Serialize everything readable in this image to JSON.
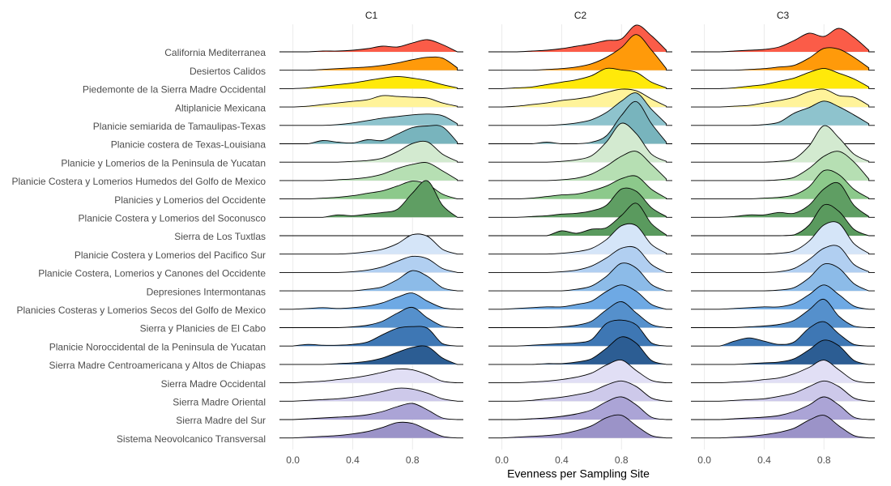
{
  "chart_data": {
    "type": "ridgeline",
    "xlabel": "Evenness per Sampling Site",
    "x": [
      0,
      0.1,
      0.2,
      0.3,
      0.4,
      0.5,
      0.6,
      0.7,
      0.8,
      0.9,
      1.0,
      1.1
    ],
    "xlim": [
      -0.09,
      1.14
    ],
    "xticks": [
      {
        "value": 0,
        "label": "0.0"
      },
      0.4,
      0.8
    ],
    "grid": true,
    "categories": [
      "California Mediterranea",
      "Desiertos Calidos",
      "Piedemonte de la Sierra Madre Occidental",
      "Altiplanicie Mexicana",
      "Planicie semiarida de Tamaulipas-Texas",
      "Planicie costera de Texas-Louisiana",
      "Planicie y Lomerios de la Peninsula de Yucatan",
      "Planicie Costera y Lomerios Humedos del Golfo de Mexico",
      "Planicies y Lomerios del Occidente",
      "Planicie Costera y Lomerios del Soconusco",
      "Sierra de Los Tuxtlas",
      "Planicie Costera y Lomerios del Pacifico Sur",
      "Planicie Costera, Lomerios y Canones del Occidente",
      "Depresiones Intermontanas",
      "Planicies Costeras y Lomerios Secos del Golfo de Mexico",
      "Sierra y Planicies de El Cabo",
      "Planicie Noroccidental de la  Peninsula de Yucatan",
      "Sierra Madre Centroamericana y Altos de Chiapas",
      "Sierra Madre Occidental",
      "Sierra Madre Oriental",
      "Sierra Madre del Sur",
      "Sistema Neovolcanico Transversal"
    ],
    "colors": [
      "#fb5c48",
      "#ff9a0a",
      "#ffe90a",
      "#fff39a",
      "#8ec3cd",
      "#78b4bd",
      "#d3ead0",
      "#b6dfb3",
      "#8cc98b",
      "#5f9e63",
      "#5a9a5e",
      "#d5e5f8",
      "#b1cff1",
      "#8cbbe8",
      "#6ea9e4",
      "#5590cc",
      "#3e77b4",
      "#2c5d93",
      "#e1dff5",
      "#cdc9ea",
      "#aba4d6",
      "#9b93c8"
    ],
    "facets": [
      {
        "title": "C1",
        "values": [
          [
            0,
            0,
            0.1,
            0.1,
            0.2,
            0.4,
            0.7,
            0.6,
            1.1,
            1.5,
            0.9,
            0
          ],
          [
            0,
            0,
            0.1,
            0.2,
            0.3,
            0.4,
            0.6,
            0.9,
            1.3,
            1.6,
            1.5,
            0.3
          ],
          [
            0,
            0.1,
            0.3,
            0.5,
            0.7,
            1.0,
            1.3,
            1.5,
            1.3,
            1.0,
            0.5,
            0.1
          ],
          [
            0,
            0.1,
            0.3,
            0.5,
            0.7,
            0.9,
            1.4,
            1.3,
            1.2,
            1.1,
            0.5,
            0.1
          ],
          [
            0,
            0,
            0,
            0.1,
            0.3,
            0.6,
            0.9,
            1.1,
            1.3,
            1.4,
            1.2,
            0.2
          ],
          [
            0,
            0,
            0.4,
            0.2,
            0.1,
            0.5,
            0.4,
            1.2,
            2.0,
            2.2,
            2.1,
            0.2
          ],
          [
            0,
            0,
            0,
            0,
            0.1,
            0.2,
            0.5,
            1.3,
            2.3,
            2.5,
            1.0,
            0.1
          ],
          [
            0,
            0,
            0,
            0.1,
            0.2,
            0.4,
            0.8,
            1.5,
            2.0,
            2.2,
            1.2,
            0.1
          ],
          [
            0,
            0,
            0.1,
            0.2,
            0.4,
            0.7,
            1.0,
            1.6,
            2.2,
            1.8,
            0.6,
            0
          ],
          [
            0,
            0,
            0,
            0.3,
            0.2,
            0.4,
            0.6,
            1.0,
            3.0,
            4.5,
            1.5,
            0
          ],
          [
            0,
            0,
            0,
            0,
            0,
            0,
            0,
            0,
            0,
            0,
            0,
            0
          ],
          [
            0,
            0,
            0,
            0,
            0.1,
            0.3,
            0.6,
            1.3,
            2.4,
            2.2,
            0.6,
            0
          ],
          [
            0,
            0,
            0,
            0,
            0.1,
            0.3,
            0.7,
            1.4,
            2.0,
            1.7,
            0.5,
            0
          ],
          [
            0,
            0,
            0,
            0,
            0,
            0.2,
            0.5,
            1.4,
            2.5,
            1.8,
            0.4,
            0
          ],
          [
            0,
            0.1,
            0.2,
            0.1,
            0.2,
            0.4,
            0.8,
            1.5,
            2.0,
            1.0,
            0.2,
            0
          ],
          [
            0,
            0,
            0,
            0,
            0.1,
            0.3,
            0.8,
            1.8,
            2.5,
            1.2,
            0.2,
            0
          ],
          [
            0,
            0.2,
            0.1,
            0.1,
            0.2,
            0.5,
            1.4,
            2.2,
            2.4,
            2.2,
            0.3,
            0
          ],
          [
            0,
            0,
            0,
            0.1,
            0.2,
            0.4,
            0.8,
            1.5,
            2.1,
            2.2,
            0.8,
            0
          ],
          [
            0,
            0.1,
            0.2,
            0.4,
            0.6,
            0.9,
            1.3,
            1.7,
            1.6,
            1.0,
            0.2,
            0
          ],
          [
            0,
            0.1,
            0.2,
            0.3,
            0.5,
            0.8,
            1.2,
            1.6,
            1.5,
            1.0,
            0.3,
            0
          ],
          [
            0,
            0.1,
            0.2,
            0.3,
            0.4,
            0.6,
            1.0,
            1.6,
            2.0,
            1.2,
            0.2,
            0
          ],
          [
            0,
            0.1,
            0.2,
            0.3,
            0.5,
            0.8,
            1.3,
            1.9,
            1.8,
            1.0,
            0.2,
            0
          ]
        ]
      },
      {
        "title": "C2",
        "values": [
          [
            0,
            0,
            0.1,
            0.2,
            0.4,
            0.7,
            1.0,
            1.4,
            1.6,
            3.3,
            2.0,
            0.2
          ],
          [
            0,
            0,
            0,
            0.1,
            0.2,
            0.4,
            0.8,
            1.6,
            2.8,
            4.4,
            2.5,
            0.2
          ],
          [
            0,
            0.1,
            0.2,
            0.5,
            0.8,
            1.1,
            1.6,
            2.5,
            2.3,
            2.0,
            0.8,
            0.1
          ],
          [
            0,
            0.1,
            0.3,
            0.5,
            0.8,
            1.0,
            1.3,
            1.8,
            2.2,
            2.0,
            1.0,
            0.1
          ],
          [
            0,
            0,
            0,
            0,
            0.1,
            0.3,
            0.7,
            1.6,
            3.0,
            4.0,
            2.0,
            0.2
          ],
          [
            0,
            0,
            0,
            0.2,
            0,
            0,
            0.2,
            1.0,
            3.5,
            5.2,
            2.5,
            0.2
          ],
          [
            0,
            0,
            0,
            0,
            0.1,
            0.3,
            0.8,
            2.5,
            4.8,
            3.5,
            1.0,
            0.1
          ],
          [
            0,
            0,
            0,
            0,
            0.1,
            0.3,
            0.8,
            1.8,
            3.0,
            3.6,
            2.0,
            0.2
          ],
          [
            0,
            0,
            0.1,
            0.3,
            0.5,
            0.6,
            1.0,
            1.6,
            2.5,
            2.8,
            1.2,
            0.1
          ],
          [
            0,
            0,
            0.1,
            0.2,
            0.4,
            0.5,
            0.8,
            1.5,
            3.5,
            3.2,
            1.2,
            0.1
          ],
          [
            0,
            0,
            0,
            0,
            0.6,
            0.3,
            0.8,
            1.0,
            2.5,
            4.0,
            1.5,
            0.1
          ],
          [
            0,
            0,
            0,
            0,
            0.1,
            0.3,
            0.7,
            1.8,
            3.5,
            3.5,
            1.2,
            0.1
          ],
          [
            0,
            0,
            0,
            0,
            0.1,
            0.3,
            0.8,
            1.8,
            3.0,
            3.0,
            1.0,
            0
          ],
          [
            0,
            0,
            0,
            0,
            0,
            0.2,
            0.6,
            1.8,
            3.4,
            2.8,
            0.8,
            0
          ],
          [
            0,
            0.1,
            0.2,
            0.3,
            0.3,
            0.6,
            1.0,
            2.2,
            3.0,
            2.2,
            0.6,
            0
          ],
          [
            0,
            0,
            0,
            0,
            0.1,
            0.3,
            0.8,
            2.2,
            3.2,
            1.8,
            0.4,
            0
          ],
          [
            0,
            0,
            0.1,
            0.2,
            0.3,
            0.4,
            0.8,
            2.8,
            3.2,
            2.6,
            0.4,
            0
          ],
          [
            0,
            0,
            0,
            0.1,
            0.1,
            0.3,
            0.7,
            2.0,
            3.4,
            2.6,
            0.5,
            0
          ],
          [
            0,
            0,
            0.1,
            0.2,
            0.4,
            0.7,
            1.2,
            2.2,
            2.8,
            1.5,
            0.3,
            0
          ],
          [
            0,
            0,
            0.1,
            0.3,
            0.5,
            0.8,
            1.2,
            2.0,
            2.5,
            1.8,
            0.4,
            0
          ],
          [
            0,
            0,
            0.1,
            0.2,
            0.4,
            0.7,
            1.2,
            2.2,
            2.8,
            1.8,
            0.3,
            0
          ],
          [
            0,
            0.1,
            0.2,
            0.3,
            0.5,
            0.9,
            1.5,
            2.5,
            2.8,
            1.5,
            0.3,
            0
          ]
        ]
      },
      {
        "title": "C3",
        "values": [
          [
            0,
            0,
            0.1,
            0.2,
            0.3,
            0.6,
            1.4,
            2.3,
            1.9,
            2.9,
            1.8,
            0.2
          ],
          [
            0,
            0,
            0,
            0.1,
            0.2,
            0.4,
            0.6,
            1.5,
            2.7,
            2.6,
            1.6,
            0.3
          ],
          [
            0,
            0,
            0.1,
            0.3,
            0.5,
            0.9,
            1.3,
            2.0,
            2.5,
            1.9,
            1.2,
            0.2
          ],
          [
            0,
            0,
            0.1,
            0.2,
            0.5,
            0.8,
            1.2,
            1.9,
            2.2,
            1.4,
            1.2,
            0.2
          ],
          [
            0,
            0,
            0,
            0,
            0.1,
            0.4,
            1.5,
            2.2,
            3.0,
            2.3,
            1.3,
            0.2
          ],
          [
            0,
            0,
            0,
            0,
            0,
            0,
            0,
            0,
            0,
            0,
            0,
            0
          ],
          [
            0,
            0,
            0,
            0,
            0,
            0.1,
            0.4,
            2.0,
            4.5,
            3.0,
            1.0,
            0.1
          ],
          [
            0,
            0,
            0,
            0,
            0,
            0.1,
            0.4,
            1.5,
            3.0,
            3.6,
            2.3,
            0.2
          ],
          [
            0,
            0,
            0,
            0,
            0.1,
            0.2,
            0.5,
            1.5,
            3.5,
            3.0,
            1.2,
            0.1
          ],
          [
            0,
            0,
            0.1,
            0.3,
            0.3,
            0.6,
            0.5,
            1.5,
            3.5,
            4.2,
            1.5,
            0.1
          ],
          [
            0,
            0,
            0,
            0,
            0,
            0,
            0.1,
            1.3,
            3.8,
            3.0,
            0.8,
            0
          ],
          [
            0,
            0,
            0,
            0,
            0,
            0.1,
            0.4,
            1.6,
            3.6,
            3.8,
            1.3,
            0.1
          ],
          [
            0,
            0,
            0,
            0,
            0,
            0.1,
            0.5,
            1.6,
            3.0,
            3.2,
            1.0,
            0.1
          ],
          [
            0,
            0,
            0,
            0,
            0,
            0.1,
            0.4,
            1.6,
            3.3,
            2.8,
            0.9,
            0
          ],
          [
            0,
            0,
            0.1,
            0.2,
            0.3,
            0.3,
            0.7,
            1.8,
            3.0,
            1.8,
            0.4,
            0
          ],
          [
            0,
            0,
            0,
            0.1,
            0.2,
            0.4,
            0.9,
            2.2,
            3.5,
            1.4,
            0.2,
            0
          ],
          [
            0,
            0,
            0.6,
            1.0,
            0.6,
            0.2,
            0.5,
            2.2,
            3.0,
            1.5,
            0.2,
            0
          ],
          [
            0,
            0,
            0,
            0.1,
            0.2,
            0.3,
            0.7,
            1.8,
            3.0,
            2.3,
            0.5,
            0
          ],
          [
            0,
            0,
            0.1,
            0.2,
            0.4,
            0.6,
            1.1,
            1.9,
            2.8,
            1.6,
            0.3,
            0
          ],
          [
            0,
            0,
            0.1,
            0.2,
            0.3,
            0.6,
            1.0,
            1.8,
            2.5,
            1.8,
            0.4,
            0
          ],
          [
            0,
            0,
            0.1,
            0.2,
            0.3,
            0.5,
            1.0,
            1.8,
            2.8,
            1.8,
            0.3,
            0
          ],
          [
            0,
            0,
            0.1,
            0.2,
            0.4,
            0.7,
            1.2,
            2.2,
            2.8,
            1.5,
            0.3,
            0
          ]
        ]
      }
    ]
  }
}
